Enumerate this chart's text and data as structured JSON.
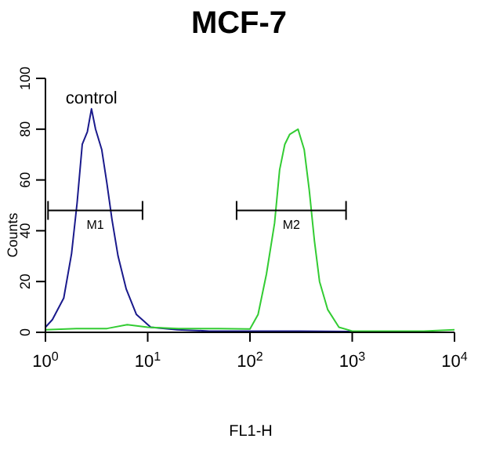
{
  "chart_data": {
    "type": "line",
    "title": "MCF-7",
    "xlabel": "FL1-H",
    "ylabel": "Counts",
    "log": "x",
    "xlim": [
      1,
      10000
    ],
    "xticks": [
      {
        "value": 1,
        "label": "10$^{0}$"
      },
      {
        "value": 10,
        "label": "10$^{1}$"
      },
      {
        "value": 100,
        "label": "10$^{2}$"
      },
      {
        "value": 1000,
        "label": "10$^{3}$"
      },
      {
        "value": 10000,
        "label": "10$^{4}$"
      }
    ],
    "ylim": [
      0,
      100
    ],
    "yticks": [
      0,
      20,
      40,
      60,
      80,
      100
    ],
    "grid": false,
    "legend": false,
    "marker": "none",
    "line_style": "solid",
    "series": [
      {
        "name": "control",
        "color": "#1a1a8c",
        "x": [
          1,
          1.17,
          1.51,
          1.8,
          2.04,
          2.29,
          2.57,
          2.82,
          3.09,
          3.55,
          3.98,
          4.47,
          5.13,
          6.17,
          7.76,
          10.7,
          19.5,
          40,
          100,
          300,
          1000,
          3000,
          10000
        ],
        "values": [
          2,
          5,
          13.5,
          31,
          51,
          74,
          79,
          88,
          80,
          72,
          59,
          44.5,
          30,
          17,
          7,
          2,
          1,
          0.5,
          0.5,
          0.5,
          0.3,
          0,
          0
        ]
      },
      {
        "color": "#33cc33",
        "x": [
          1,
          2,
          4,
          6.3,
          10,
          20,
          50,
          100,
          120,
          145,
          174,
          195,
          219,
          245,
          295,
          339,
          380,
          427,
          479,
          575,
          741,
          1000,
          2000,
          5000,
          10000
        ],
        "values": [
          1,
          1.5,
          1.5,
          3,
          2,
          1.5,
          1.5,
          1.3,
          7,
          23,
          43,
          64,
          74,
          78,
          80,
          72,
          56,
          36,
          20,
          9,
          2,
          0.5,
          0.5,
          0.5,
          1
        ]
      },
      {
        "type": "line",
        "name": "M1",
        "color": "#000000",
        "x": [
          1.06,
          8.9
        ],
        "values": [
          48,
          48
        ]
      },
      {
        "type": "line",
        "name": "M2",
        "color": "#000000",
        "x": [
          74,
          870
        ],
        "values": [
          48,
          48
        ]
      }
    ]
  }
}
